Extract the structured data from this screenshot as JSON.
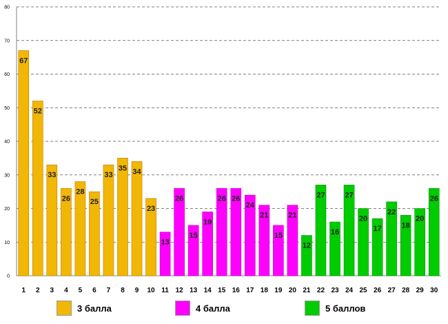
{
  "chart_data": {
    "type": "bar",
    "title": "",
    "xlabel": "",
    "ylabel": "",
    "ylim": [
      0,
      80
    ],
    "yticks": [
      0,
      10,
      20,
      30,
      40,
      50,
      60,
      70,
      80
    ],
    "categories": [
      "1",
      "2",
      "3",
      "4",
      "5",
      "6",
      "7",
      "8",
      "9",
      "10",
      "11",
      "12",
      "13",
      "14",
      "15",
      "16",
      "17",
      "18",
      "19",
      "20",
      "21",
      "22",
      "23",
      "24",
      "25",
      "26",
      "27",
      "28",
      "29",
      "30"
    ],
    "values": [
      67,
      52,
      33,
      26,
      28,
      25,
      33,
      35,
      34,
      23,
      13,
      26,
      15,
      19,
      26,
      26,
      24,
      21,
      15,
      21,
      12,
      27,
      16,
      27,
      20,
      17,
      22,
      18,
      20,
      26
    ],
    "grid": "horizontal-dashed",
    "groups": [
      {
        "name": "3 балла",
        "color": "#f2b705",
        "from": 1,
        "to": 10
      },
      {
        "name": "4 балла",
        "color": "#ff00ff",
        "from": 11,
        "to": 20
      },
      {
        "name": "5 баллов",
        "color": "#00cc00",
        "from": 21,
        "to": 30
      }
    ]
  }
}
